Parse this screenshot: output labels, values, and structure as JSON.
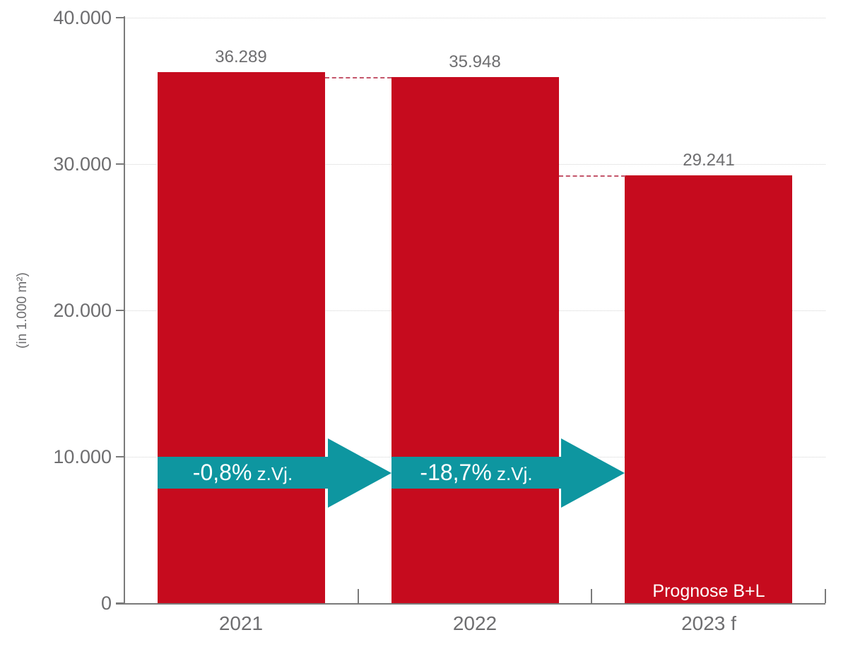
{
  "chart_data": {
    "type": "bar",
    "title": "",
    "xlabel": "",
    "ylabel": "(in 1.000 m²)",
    "categories": [
      "2021",
      "2022",
      "2023 f"
    ],
    "values": [
      36289,
      35948,
      29241
    ],
    "value_labels": [
      "36.289",
      "35.948",
      "29.241"
    ],
    "ylim": [
      0,
      40000
    ],
    "yticks": [
      {
        "value": 0,
        "label": "0"
      },
      {
        "value": 10000,
        "label": "10.000"
      },
      {
        "value": 20000,
        "label": "20.000"
      },
      {
        "value": 30000,
        "label": "30.000"
      },
      {
        "value": 40000,
        "label": "40.000"
      }
    ],
    "grid": "horizontal-dotted",
    "legend": "none",
    "bar_note": {
      "bar_index": 2,
      "text": "Prognose B+L"
    },
    "connectors": [
      {
        "from_bar": 0,
        "to_bar": 1,
        "at_value": 35948
      },
      {
        "from_bar": 1,
        "to_bar": 2,
        "at_value": 29241
      }
    ],
    "arrows": [
      {
        "from_bar": 0,
        "to_bar": 1,
        "main": "-0,8%",
        "suffix": " z.Vj.",
        "band_top_value": 10000
      },
      {
        "from_bar": 1,
        "to_bar": 2,
        "main": "-18,7%",
        "suffix": " z.Vj.",
        "band_top_value": 10000
      }
    ],
    "colors": {
      "background": "#ffffff",
      "bar": "#c60b1e",
      "arrow": "#0e96a0",
      "arrow_text": "#ffffff",
      "bar_note_text": "#ffffff",
      "axis": "#7a7a7a",
      "text": "#6e6e70",
      "gridline": "#d4d4d4",
      "connector": "#c4566b"
    }
  }
}
